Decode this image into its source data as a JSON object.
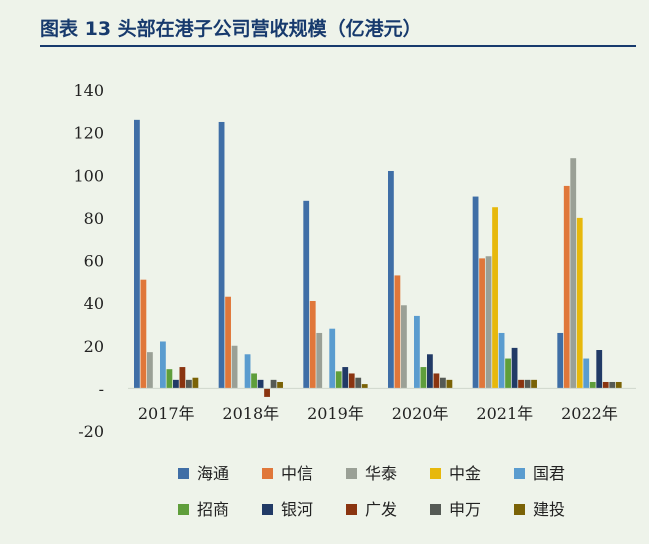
{
  "title": "图表 13 头部在港子公司营收规模（亿港元）",
  "chart_data": {
    "type": "bar",
    "categories": [
      "2017年",
      "2018年",
      "2019年",
      "2020年",
      "2021年",
      "2022年"
    ],
    "ylim": [
      -20,
      140
    ],
    "yticks": [
      -20,
      0,
      20,
      40,
      60,
      80,
      100,
      120,
      140
    ],
    "ytick_labels": [
      "-20",
      "-",
      "20",
      "40",
      "60",
      "80",
      "100",
      "120",
      "140"
    ],
    "legend_position": "bottom",
    "grid": false,
    "series": [
      {
        "name": "海通",
        "color": "#3f6ea6",
        "values": [
          126,
          125,
          88,
          102,
          90,
          26
        ]
      },
      {
        "name": "中信",
        "color": "#e0773a",
        "values": [
          51,
          43,
          41,
          53,
          61,
          95
        ]
      },
      {
        "name": "华泰",
        "color": "#9aa096",
        "values": [
          17,
          20,
          26,
          39,
          62,
          108
        ]
      },
      {
        "name": "中金",
        "color": "#e7b80c",
        "values": [
          0,
          0,
          0,
          0,
          85,
          80
        ]
      },
      {
        "name": "国君",
        "color": "#5a9ccf",
        "values": [
          22,
          16,
          28,
          34,
          26,
          14
        ]
      },
      {
        "name": "招商",
        "color": "#5f9e3b",
        "values": [
          9,
          7,
          8,
          10,
          14,
          3
        ]
      },
      {
        "name": "银河",
        "color": "#213a66",
        "values": [
          4,
          4,
          10,
          16,
          19,
          18
        ]
      },
      {
        "name": "广发",
        "color": "#8a3410",
        "values": [
          10,
          -4,
          7,
          7,
          4,
          3
        ]
      },
      {
        "name": "申万",
        "color": "#555a55",
        "values": [
          4,
          4,
          5,
          5,
          4,
          3
        ]
      },
      {
        "name": "建投",
        "color": "#7a6206",
        "values": [
          5,
          3,
          2,
          4,
          4,
          3
        ]
      }
    ]
  }
}
